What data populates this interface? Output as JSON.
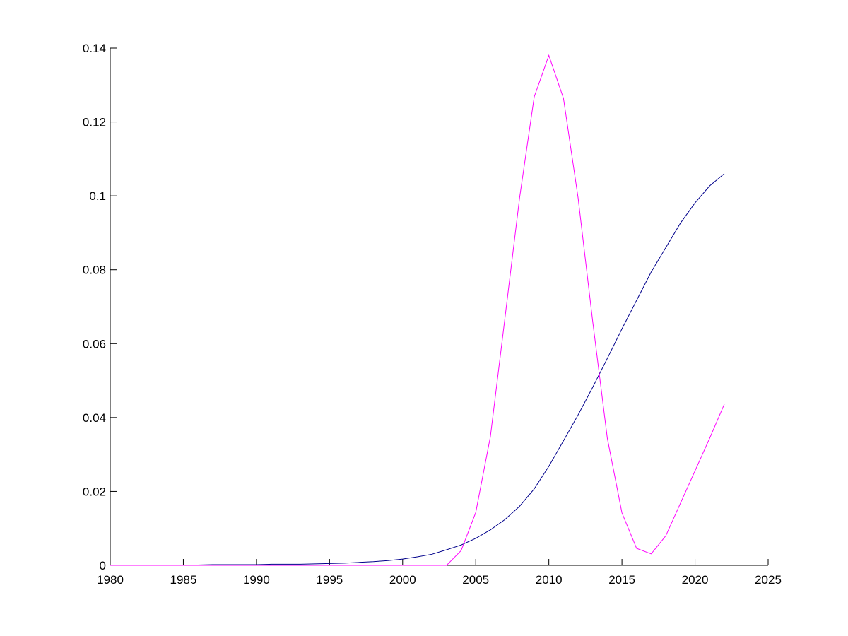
{
  "chart_data": {
    "type": "line",
    "x": [
      1980,
      1981,
      1982,
      1983,
      1984,
      1985,
      1986,
      1987,
      1988,
      1989,
      1990,
      1991,
      1992,
      1993,
      1994,
      1995,
      1996,
      1997,
      1998,
      1999,
      2000,
      2001,
      2002,
      2003,
      2004,
      2005,
      2006,
      2007,
      2008,
      2009,
      2010,
      2011,
      2012,
      2013,
      2014,
      2015,
      2016,
      2017,
      2018,
      2019,
      2020,
      2021,
      2022
    ],
    "series": [
      {
        "color": "#00008b",
        "values": [
          0.0001,
          0.0001,
          0.0001,
          0.0001,
          0.0001,
          0.0001,
          0.0001,
          0.0002,
          0.0002,
          0.0002,
          0.0002,
          0.0003,
          0.0003,
          0.0003,
          0.0004,
          0.0005,
          0.0006,
          0.0008,
          0.001,
          0.0013,
          0.0017,
          0.0023,
          0.003,
          0.0042,
          0.0055,
          0.0073,
          0.0096,
          0.0124,
          0.016,
          0.0207,
          0.0268,
          0.0337,
          0.0407,
          0.0482,
          0.056,
          0.064,
          0.0717,
          0.0794,
          0.086,
          0.0926,
          0.0981,
          0.1027,
          0.106
        ]
      },
      {
        "color": "#ff00ff",
        "values": [
          0,
          0,
          0,
          0,
          0,
          0,
          0,
          0,
          0,
          0,
          0,
          0,
          0,
          0,
          0,
          0,
          0,
          0,
          0,
          0,
          0,
          0,
          0,
          0,
          0.004,
          0.0143,
          0.0348,
          0.067,
          0.0995,
          0.1268,
          0.138,
          0.1264,
          0.0995,
          0.066,
          0.0344,
          0.0142,
          0.0046,
          0.0031,
          0.008,
          0.0168,
          0.0256,
          0.0344,
          0.0436
        ]
      }
    ],
    "xlim": [
      1980,
      2025
    ],
    "xticks": [
      1980,
      1985,
      1990,
      1995,
      2000,
      2005,
      2010,
      2015,
      2020,
      2025
    ],
    "ylim": [
      0,
      0.14
    ],
    "yticks": [
      0,
      0.02,
      0.04,
      0.06,
      0.08,
      0.1,
      0.12,
      0.14
    ]
  }
}
